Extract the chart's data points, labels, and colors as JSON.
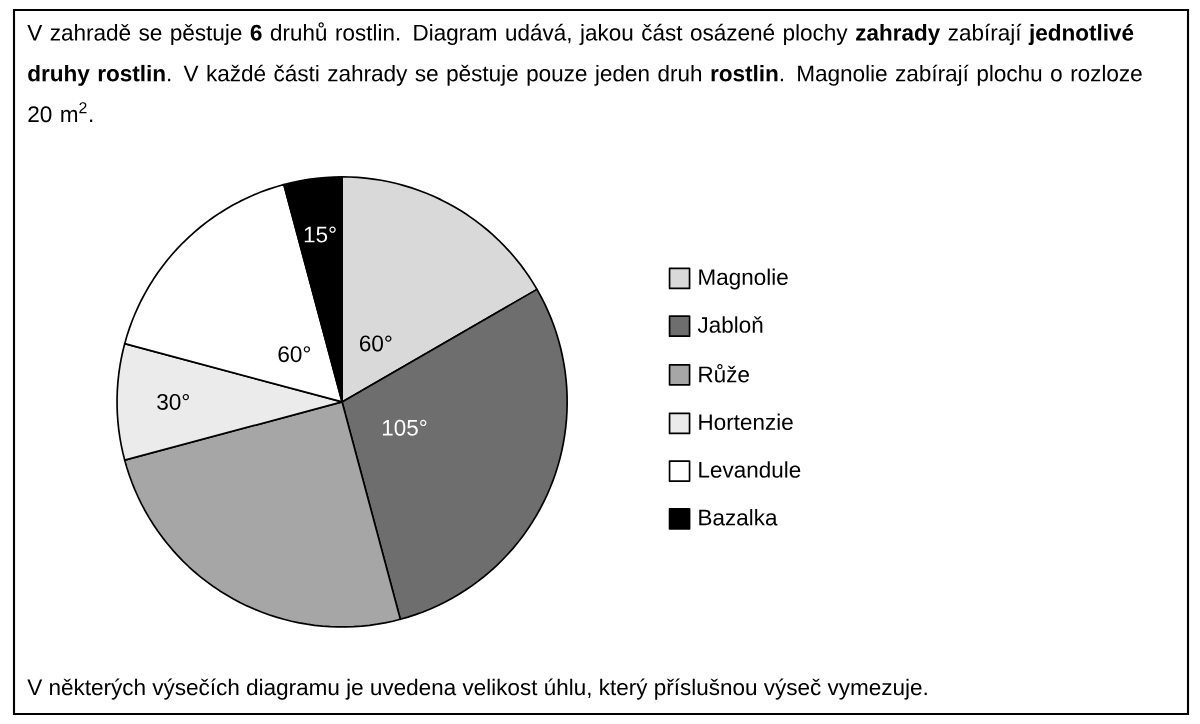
{
  "chart_data": {
    "type": "pie",
    "title": "V zahradě se pěstuje **6** druhů rostlin. Diagram udává, jakou část osázené plochy **zahrady** zabírají **jednotlivé druhy rostlin**. V každé části zahrady se pěstuje pouze jeden druh **rostlin**. Magnolie zabírají plochu o rozloze 20 m$^{2}$.",
    "categories": [
      "Magnolie",
      "Jabloň",
      "Růže",
      "Hortenzie",
      "Levandule",
      "Bazalka"
    ],
    "values": [
      60,
      105,
      90,
      30,
      60,
      15
    ],
    "value_labels": [
      "60°",
      "105°",
      null,
      "30°",
      "60°",
      "15°"
    ],
    "colors": [
      "#d9d9d9",
      "#6e6e6e",
      "#a6a6a6",
      "#ebebeb",
      "#ffffff",
      "#000000"
    ],
    "legend": "right",
    "annotations": [
      "V některých výsečích diagramu je uvedena velikost úhlu, který příslušnou výseč vymezuje."
    ]
  }
}
